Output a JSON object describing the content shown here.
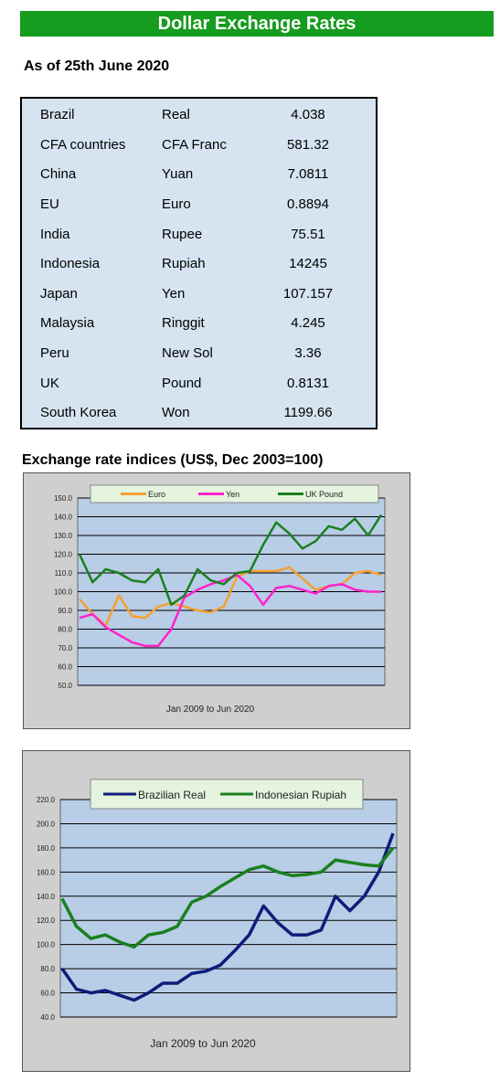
{
  "header": {
    "title": "Dollar Exchange Rates",
    "subtitle": "As of 25th June 2020"
  },
  "rates_table": {
    "rows": [
      {
        "country": "Brazil",
        "currency": "Real",
        "rate": "4.038"
      },
      {
        "country": "CFA countries",
        "currency": "CFA Franc",
        "rate": "581.32"
      },
      {
        "country": "China",
        "currency": "Yuan",
        "rate": "7.0811"
      },
      {
        "country": "EU",
        "currency": "Euro",
        "rate": "0.8894"
      },
      {
        "country": "India",
        "currency": "Rupee",
        "rate": "75.51"
      },
      {
        "country": "Indonesia",
        "currency": "Rupiah",
        "rate": "14245"
      },
      {
        "country": "Japan",
        "currency": "Yen",
        "rate": "107.157"
      },
      {
        "country": "Malaysia",
        "currency": "Ringgit",
        "rate": "4.245"
      },
      {
        "country": "Peru",
        "currency": "New Sol",
        "rate": "3.36"
      },
      {
        "country": "UK",
        "currency": "Pound",
        "rate": "0.8131"
      },
      {
        "country": "South Korea",
        "currency": "Won",
        "rate": "1199.66"
      }
    ]
  },
  "indices_section": {
    "title": "Exchange rate indices (US$, Dec 2003=100)"
  },
  "chart_data": [
    {
      "type": "line",
      "title": "",
      "xlabel": "Jan 2009  to Jun 2020",
      "ylabel": "",
      "ylim": [
        50,
        150
      ],
      "yticks": [
        "150.0",
        "140.0",
        "130.0",
        "120.0",
        "110.0",
        "100.0",
        "90.0",
        "80.0",
        "70.0",
        "60.0",
        "50.0"
      ],
      "grid": "horizontal",
      "legend": "top",
      "x": [
        2009.0,
        2009.5,
        2010.0,
        2010.5,
        2011.0,
        2011.5,
        2012.0,
        2012.5,
        2013.0,
        2013.5,
        2014.0,
        2014.5,
        2015.0,
        2015.5,
        2016.0,
        2016.5,
        2017.0,
        2017.5,
        2018.0,
        2018.5,
        2019.0,
        2019.5,
        2020.0,
        2020.5
      ],
      "series": [
        {
          "name": "Euro",
          "color": "#f4a030",
          "values": [
            96,
            88,
            82,
            98,
            87,
            86,
            92,
            94,
            92,
            90,
            89,
            92,
            108,
            111,
            111,
            111,
            113,
            107,
            101,
            103,
            104,
            110,
            111,
            109
          ]
        },
        {
          "name": "Yen",
          "color": "#ff22cc",
          "values": [
            86,
            88,
            81,
            77,
            73,
            71,
            71,
            80,
            97,
            101,
            104,
            106,
            109,
            103,
            93,
            102,
            103,
            101,
            99,
            103,
            104,
            101,
            100,
            100
          ]
        },
        {
          "name": "UK Pound",
          "color": "#1a8020",
          "values": [
            120,
            105,
            112,
            110,
            106,
            105,
            112,
            93,
            98,
            112,
            106,
            104,
            110,
            111,
            125,
            137,
            131,
            123,
            127,
            135,
            133,
            139,
            130,
            141
          ]
        }
      ]
    },
    {
      "type": "line",
      "title": "",
      "xlabel": "Jan 2009  to Jun 2020",
      "ylabel": "",
      "ylim": [
        40,
        220
      ],
      "yticks": [
        "220.0",
        "200.0",
        "180.0",
        "160.0",
        "140.0",
        "120.0",
        "100.0",
        "80.0",
        "60.0",
        "40.0"
      ],
      "grid": "horizontal",
      "legend": "top",
      "x": [
        2009.0,
        2009.5,
        2010.0,
        2010.5,
        2011.0,
        2011.5,
        2012.0,
        2012.5,
        2013.0,
        2013.5,
        2014.0,
        2014.5,
        2015.0,
        2015.5,
        2016.0,
        2016.5,
        2017.0,
        2017.5,
        2018.0,
        2018.5,
        2019.0,
        2019.5,
        2020.0,
        2020.5
      ],
      "series": [
        {
          "name": "Brazilian Real",
          "color": "#0f1c7a",
          "values": [
            80,
            63,
            60,
            62,
            58,
            54,
            60,
            68,
            68,
            76,
            78,
            83,
            95,
            108,
            132,
            118,
            108,
            108,
            112,
            140,
            128,
            140,
            160,
            192
          ]
        },
        {
          "name": "Indonesian Rupiah",
          "color": "#1a8020",
          "values": [
            138,
            115,
            105,
            108,
            102,
            98,
            108,
            110,
            115,
            135,
            140,
            148,
            155,
            162,
            165,
            160,
            157,
            158,
            160,
            170,
            168,
            166,
            165,
            180
          ]
        }
      ]
    }
  ]
}
